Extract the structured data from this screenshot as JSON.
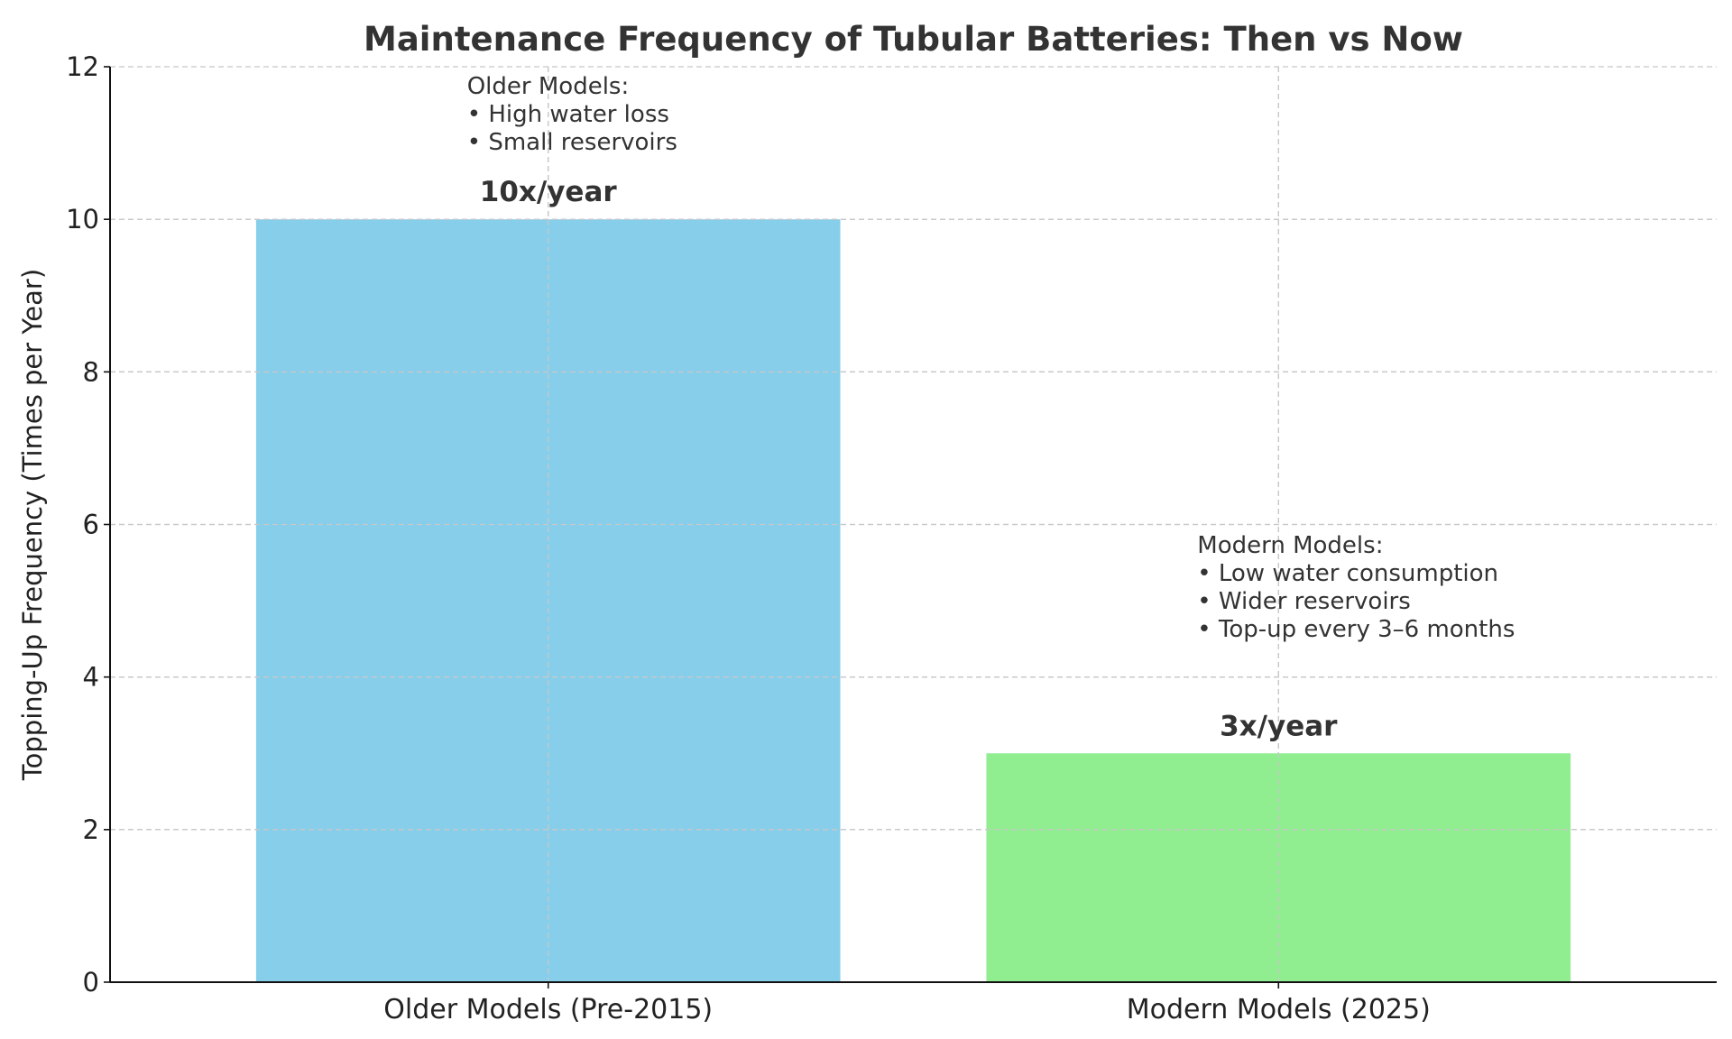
{
  "chart_data": {
    "type": "bar",
    "title": "Maintenance Frequency of Tubular Batteries: Then vs Now",
    "xlabel": "",
    "ylabel": "Topping-Up Frequency (Times per Year)",
    "categories": [
      "Older Models (Pre-2015)",
      "Modern Models (2025)"
    ],
    "values": [
      10,
      3
    ],
    "data_labels": [
      "10x/year",
      "3x/year"
    ],
    "colors": [
      "#87CEEB",
      "#90EE90"
    ],
    "ylim": [
      0,
      12
    ],
    "yticks": [
      0,
      2,
      4,
      6,
      8,
      10,
      12
    ],
    "grid": true,
    "annotations": [
      {
        "category": "Older Models (Pre-2015)",
        "y": 11.2,
        "lines": [
          "Older Models:",
          "• High water loss",
          "• Small reservoirs"
        ]
      },
      {
        "category": "Modern Models (2025)",
        "y": 5,
        "lines": [
          "Modern Models:",
          "• Low water consumption",
          "• Wider reservoirs",
          "• Top-up every 3–6 months"
        ]
      }
    ]
  }
}
